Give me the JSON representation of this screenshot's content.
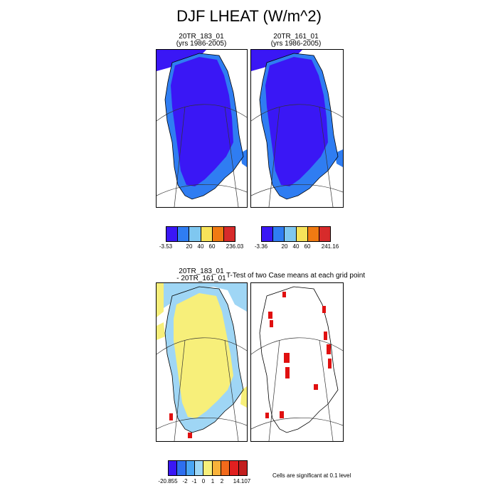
{
  "title": "DJF LHEAT (W/m^2)",
  "panels": {
    "top_left": {
      "line1": "20TR_183_01",
      "line2": "(yrs 1986-2005)"
    },
    "top_right": {
      "line1": "20TR_161_01",
      "line2": "(yrs 1986-2005)"
    },
    "bottom_left": {
      "line1": "20TR_183_01",
      "line2": "- 20TR_161_01"
    },
    "bottom_right": {
      "line1": "T-Test of two Case means at each grid point"
    }
  },
  "colorbars": {
    "top_left": {
      "colors": [
        "#3a17f5",
        "#2f7df2",
        "#7fc7f0",
        "#f7e35a",
        "#f07a12",
        "#d72b2b"
      ],
      "labels": [
        "-3.53",
        "20",
        "40",
        "60",
        "236.03"
      ]
    },
    "top_right": {
      "colors": [
        "#3a17f5",
        "#2f7df2",
        "#7fc7f0",
        "#f7e35a",
        "#f07a12",
        "#d72b2b"
      ],
      "labels": [
        "-3.36",
        "20",
        "40",
        "60",
        "241.16"
      ]
    },
    "bottom": {
      "colors": [
        "#3a17f5",
        "#2e6ff0",
        "#4aa6f5",
        "#9ed8f7",
        "#f7ef7a",
        "#f9b23a",
        "#f26a1b",
        "#e02020",
        "#c21f1f"
      ],
      "labels": [
        "-20.855",
        "-2",
        "-1",
        "0",
        "1",
        "2",
        "14.107"
      ]
    }
  },
  "significance_note": "Cells are significant at 0.1 level",
  "map_colors": {
    "dark": "#3a17f5",
    "mid": "#2f7df2",
    "light": "#9fd6f5",
    "yellow": "#f7ef7a",
    "sig": "#e01010"
  }
}
